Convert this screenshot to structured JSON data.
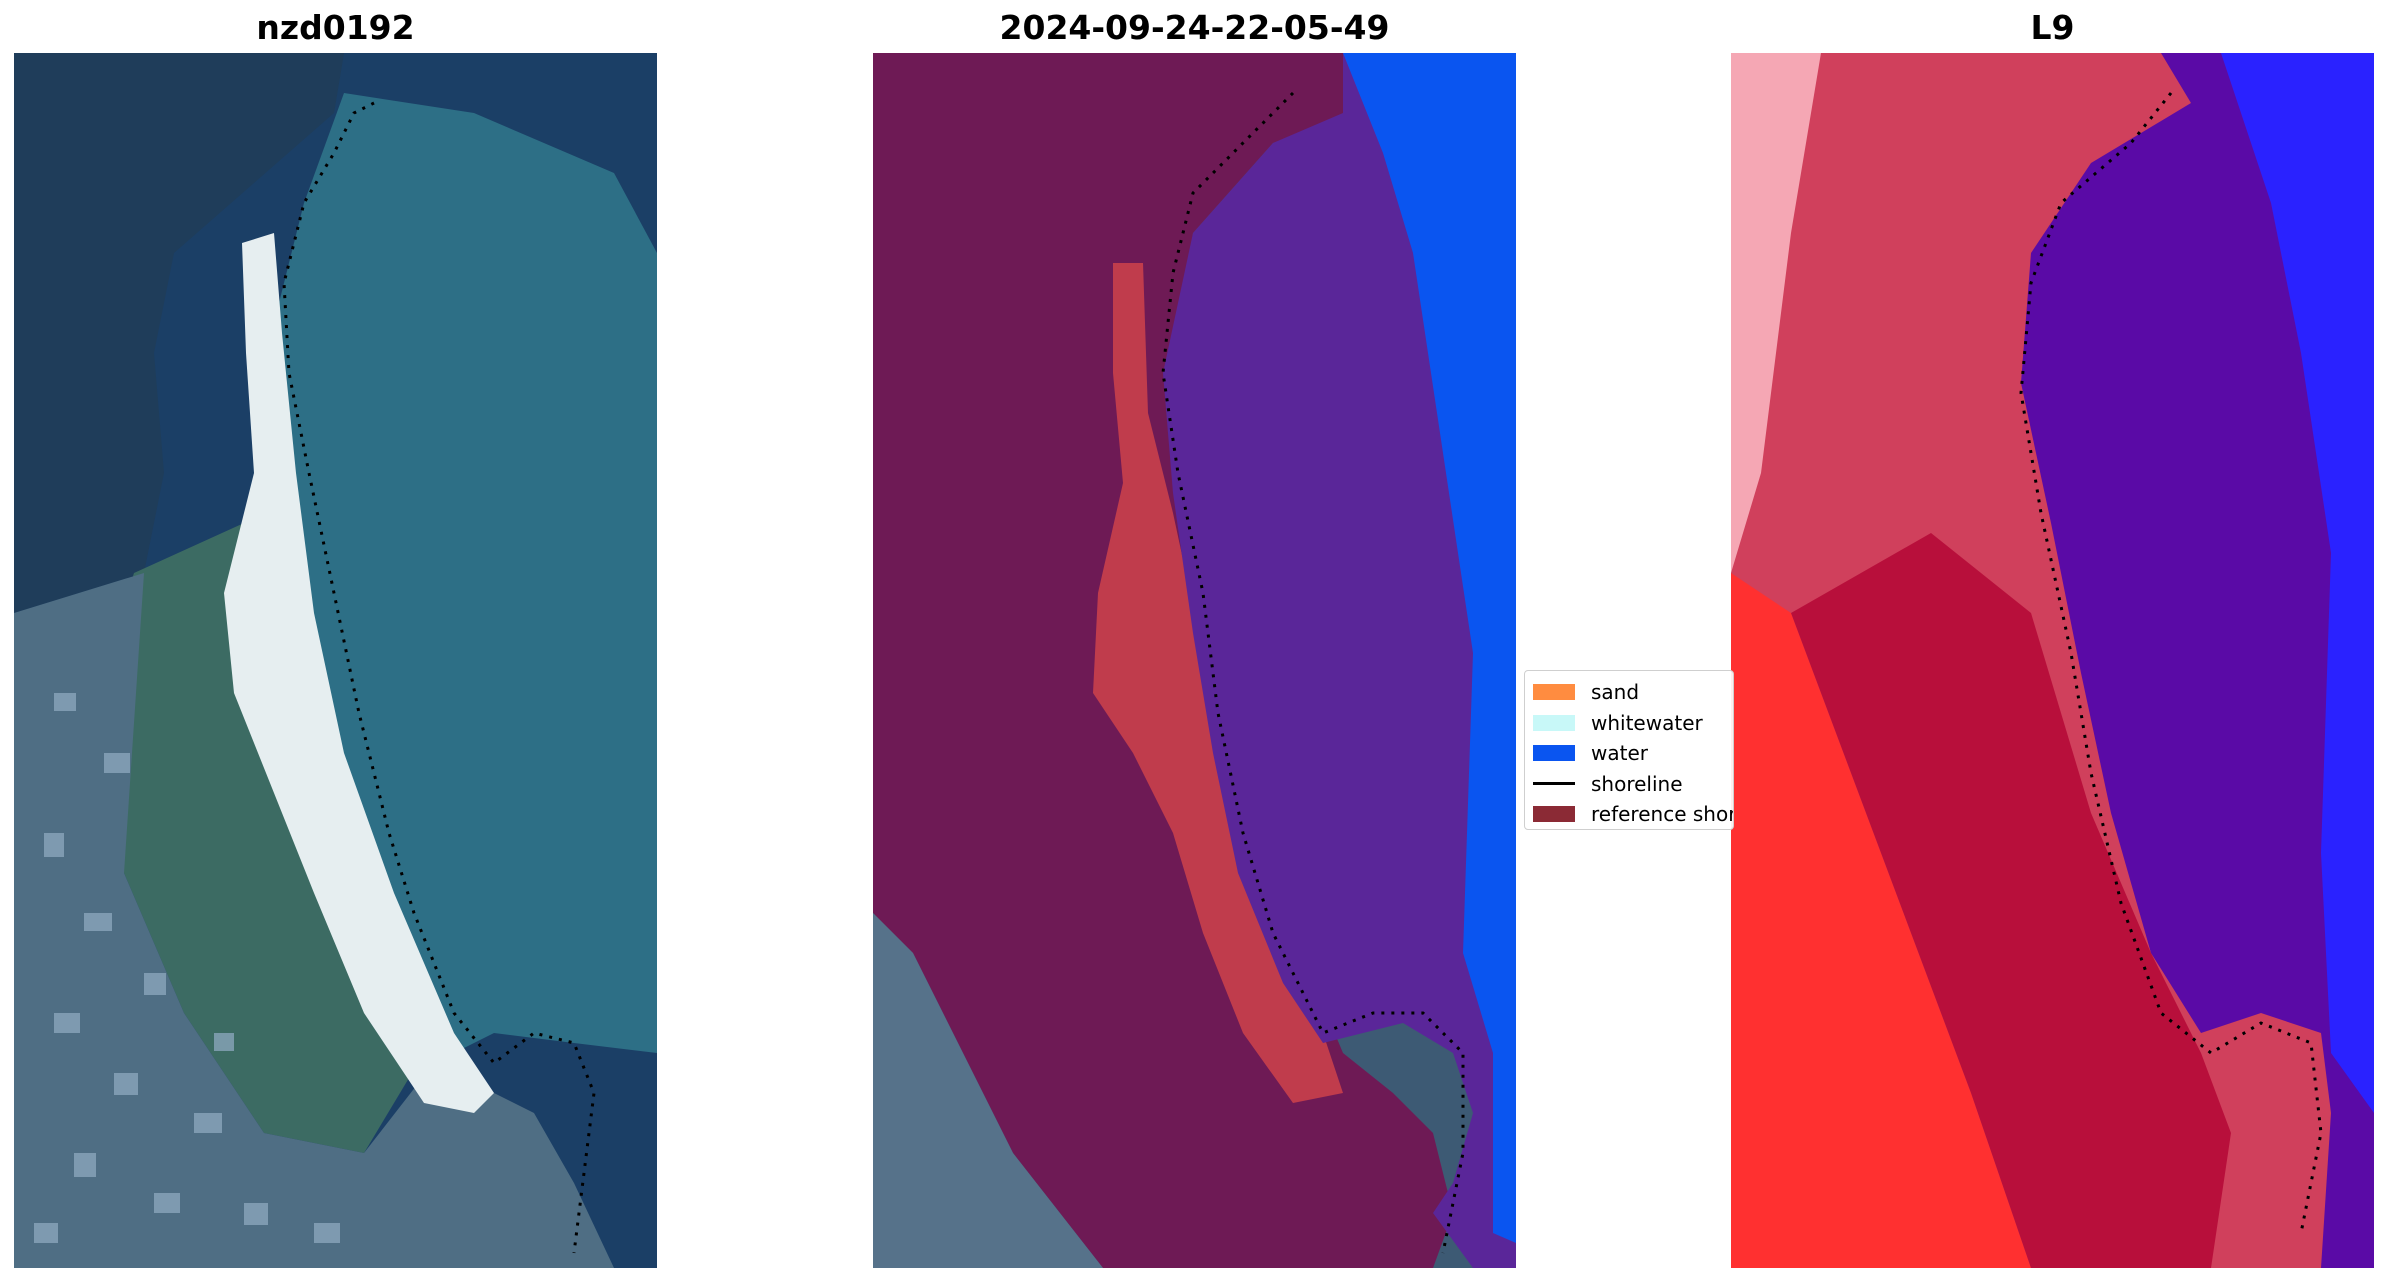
{
  "panels": [
    {
      "title": "nzd0192",
      "image": "rgb-satellite-image"
    },
    {
      "title": "2024-09-24-22-05-49",
      "image": "classified-overlay-image"
    },
    {
      "title": "L9",
      "image": "index-map-image"
    }
  ],
  "legend": {
    "items": [
      {
        "label": "sand",
        "color": "#ff8c40",
        "kind": "patch"
      },
      {
        "label": "whitewater",
        "color": "#c8f8f8",
        "kind": "patch"
      },
      {
        "label": "water",
        "color": "#0a55f0",
        "kind": "patch"
      },
      {
        "label": "shoreline",
        "color": "#000000",
        "kind": "line"
      },
      {
        "label": "reference shoreline",
        "color": "#8b2a35",
        "kind": "patch"
      }
    ]
  },
  "colors": {
    "deep_water": "#1b3f66",
    "shallow_water": "#2d6f86",
    "beach_sand": "#e6eef0",
    "urban": "#4f6e84",
    "land_overlay": "#6e1a55",
    "water_overlay": "#5a2699",
    "sand_overlay": "#c03c4c",
    "open_water_blue": "#0a55f0",
    "l9_land": "#d0405c",
    "l9_water": "#5a0aa6",
    "l9_bright_red": "#ff3030",
    "l9_blue": "#2a22ff"
  }
}
